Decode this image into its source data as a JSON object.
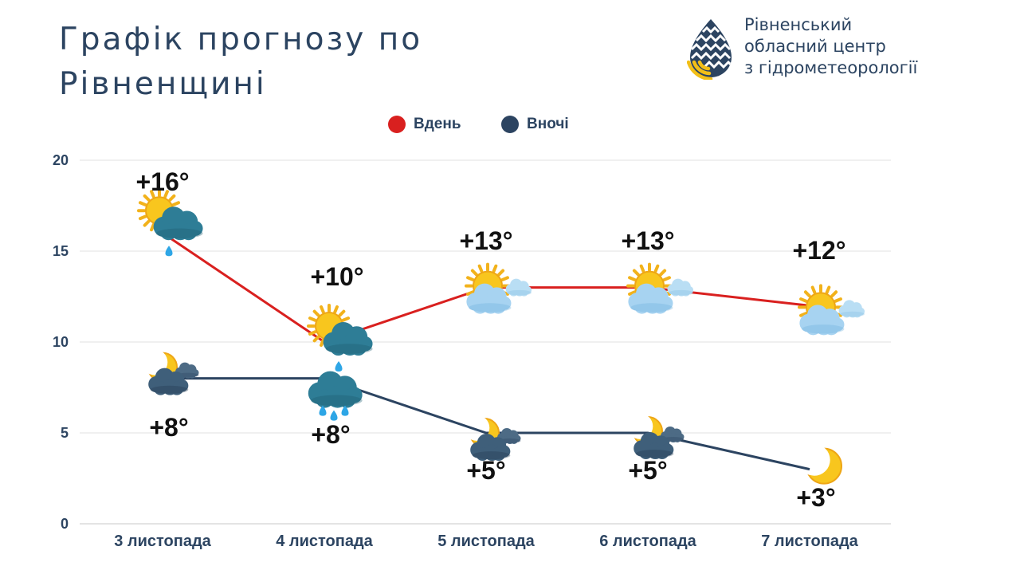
{
  "header": {
    "title_line1": "Графік прогнозу по",
    "title_line2": "Рівненщині"
  },
  "org": {
    "line1": "Рівненський",
    "line2": "обласний центр",
    "line3": "з гідрометеорології",
    "logo_icon": "water-drop-sun-logo-icon"
  },
  "colors": {
    "day": "#d9201f",
    "night": "#2c4461",
    "text": "#2c4461",
    "grid": "#e2e2e2",
    "logo_blue": "#2c4461",
    "logo_yellow": "#f2bf17"
  },
  "chart_data": {
    "type": "line",
    "title": "Графік прогнозу по Рівненщині",
    "categories": [
      "3 листопада",
      "4 листопада",
      "5 листопада",
      "6 листопада",
      "7 листопада"
    ],
    "series": [
      {
        "name": "Вдень",
        "values": [
          16,
          10,
          13,
          13,
          12
        ],
        "labels": [
          "+16°",
          "+10°",
          "+13°",
          "+13°",
          "+12°"
        ],
        "icons": [
          "sun-cloud-rain-icon",
          "sun-cloud-rain-icon",
          "sun-cloud-icon",
          "sun-cloud-icon",
          "sun-cloud-icon"
        ]
      },
      {
        "name": "Вночі",
        "values": [
          8,
          8,
          5,
          5,
          3
        ],
        "labels": [
          "+8°",
          "+8°",
          "+5°",
          "+5°",
          "+3°"
        ],
        "icons": [
          "moon-cloud-icon",
          "rain-cloud-icon",
          "moon-cloud-icon",
          "moon-cloud-icon",
          "moon-icon"
        ]
      }
    ],
    "ylim": [
      0,
      20
    ],
    "yticks": [
      0,
      5,
      10,
      15,
      20
    ],
    "grid": true,
    "legend_position": "top-center",
    "xlabel": "",
    "ylabel": ""
  }
}
